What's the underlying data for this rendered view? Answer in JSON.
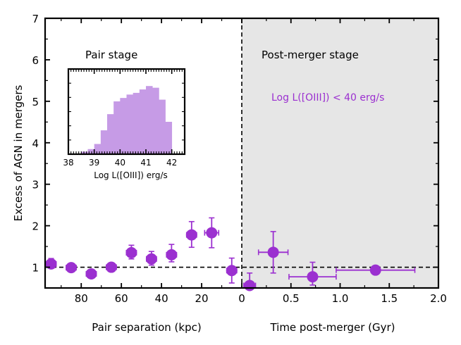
{
  "chart_data": {
    "type": "scatter",
    "ylabel": "Excess of AGN in mergers",
    "ylim": [
      0.5,
      7
    ],
    "yticks": [
      1,
      2,
      3,
      4,
      5,
      6,
      7
    ],
    "left_panel": {
      "xlabel": "Pair separation (kpc)",
      "xlim": [
        98,
        0
      ],
      "xticks": [
        80,
        60,
        40,
        20,
        0
      ],
      "label": "Pair stage",
      "points": [
        {
          "x": 95,
          "y": 1.08,
          "xerr": 2.5,
          "yerr_lo": 0.1,
          "yerr_hi": 0.13
        },
        {
          "x": 85,
          "y": 0.99,
          "xerr": 2.5,
          "yerr_lo": 0.1,
          "yerr_hi": 0.1
        },
        {
          "x": 75,
          "y": 0.84,
          "xerr": 2.5,
          "yerr_lo": 0.06,
          "yerr_hi": 0.09
        },
        {
          "x": 65,
          "y": 1.0,
          "xerr": 2.5,
          "yerr_lo": 0.1,
          "yerr_hi": 0.1
        },
        {
          "x": 55,
          "y": 1.35,
          "xerr": 2.5,
          "yerr_lo": 0.15,
          "yerr_hi": 0.18
        },
        {
          "x": 45,
          "y": 1.2,
          "xerr": 2.5,
          "yerr_lo": 0.15,
          "yerr_hi": 0.18
        },
        {
          "x": 35,
          "y": 1.3,
          "xerr": 2.5,
          "yerr_lo": 0.17,
          "yerr_hi": 0.25
        },
        {
          "x": 25,
          "y": 1.78,
          "xerr": 2.5,
          "yerr_lo": 0.3,
          "yerr_hi": 0.32
        },
        {
          "x": 15,
          "y": 1.83,
          "xerr": 3.5,
          "yerr_lo": 0.36,
          "yerr_hi": 0.36
        },
        {
          "x": 5,
          "y": 0.92,
          "xerr": 2.5,
          "yerr_lo": 0.3,
          "yerr_hi": 0.3
        }
      ]
    },
    "right_panel": {
      "xlabel": "Time post-merger (Gyr)",
      "xlim": [
        0,
        2.0
      ],
      "xticks": [
        0.5,
        1.0,
        1.5,
        2.0
      ],
      "xtick_labels": [
        "0.5",
        "1.0",
        "1.5",
        "2.0"
      ],
      "label": "Post-merger stage",
      "annotation": "Log L([OIII]) < 40 erg/s",
      "points": [
        {
          "x": 0.08,
          "y": 0.56,
          "xerr": 0.06,
          "yerr_lo": 0.1,
          "yerr_hi": 0.3
        },
        {
          "x": 0.32,
          "y": 1.36,
          "xerr": 0.15,
          "yerr_lo": 0.5,
          "yerr_hi": 0.5
        },
        {
          "x": 0.72,
          "y": 0.77,
          "xerr": 0.24,
          "yerr_lo": 0.2,
          "yerr_hi": 0.35
        },
        {
          "x": 1.36,
          "y": 0.93,
          "xerr": 0.4,
          "yerr_lo": 0.08,
          "yerr_hi": 0.08
        }
      ]
    },
    "reference_line_y": 1,
    "inset": {
      "type": "histogram",
      "xlabel": "Log L([OIII]) erg/s",
      "xlim": [
        38,
        42.5
      ],
      "xticks": [
        38,
        39,
        40,
        41,
        42
      ],
      "bin_width": 0.25,
      "bins": [
        {
          "x0": 38.5,
          "h": 0.03
        },
        {
          "x0": 38.75,
          "h": 0.06
        },
        {
          "x0": 39.0,
          "h": 0.12
        },
        {
          "x0": 39.25,
          "h": 0.28
        },
        {
          "x0": 39.5,
          "h": 0.47
        },
        {
          "x0": 39.75,
          "h": 0.62
        },
        {
          "x0": 40.0,
          "h": 0.66
        },
        {
          "x0": 40.25,
          "h": 0.7
        },
        {
          "x0": 40.5,
          "h": 0.72
        },
        {
          "x0": 40.75,
          "h": 0.76
        },
        {
          "x0": 41.0,
          "h": 0.8
        },
        {
          "x0": 41.25,
          "h": 0.78
        },
        {
          "x0": 41.5,
          "h": 0.64
        },
        {
          "x0": 41.75,
          "h": 0.38
        }
      ]
    },
    "colors": {
      "marker": "#9b30d0",
      "hist": "#c69be6",
      "shade": "#e6e6e6"
    }
  }
}
